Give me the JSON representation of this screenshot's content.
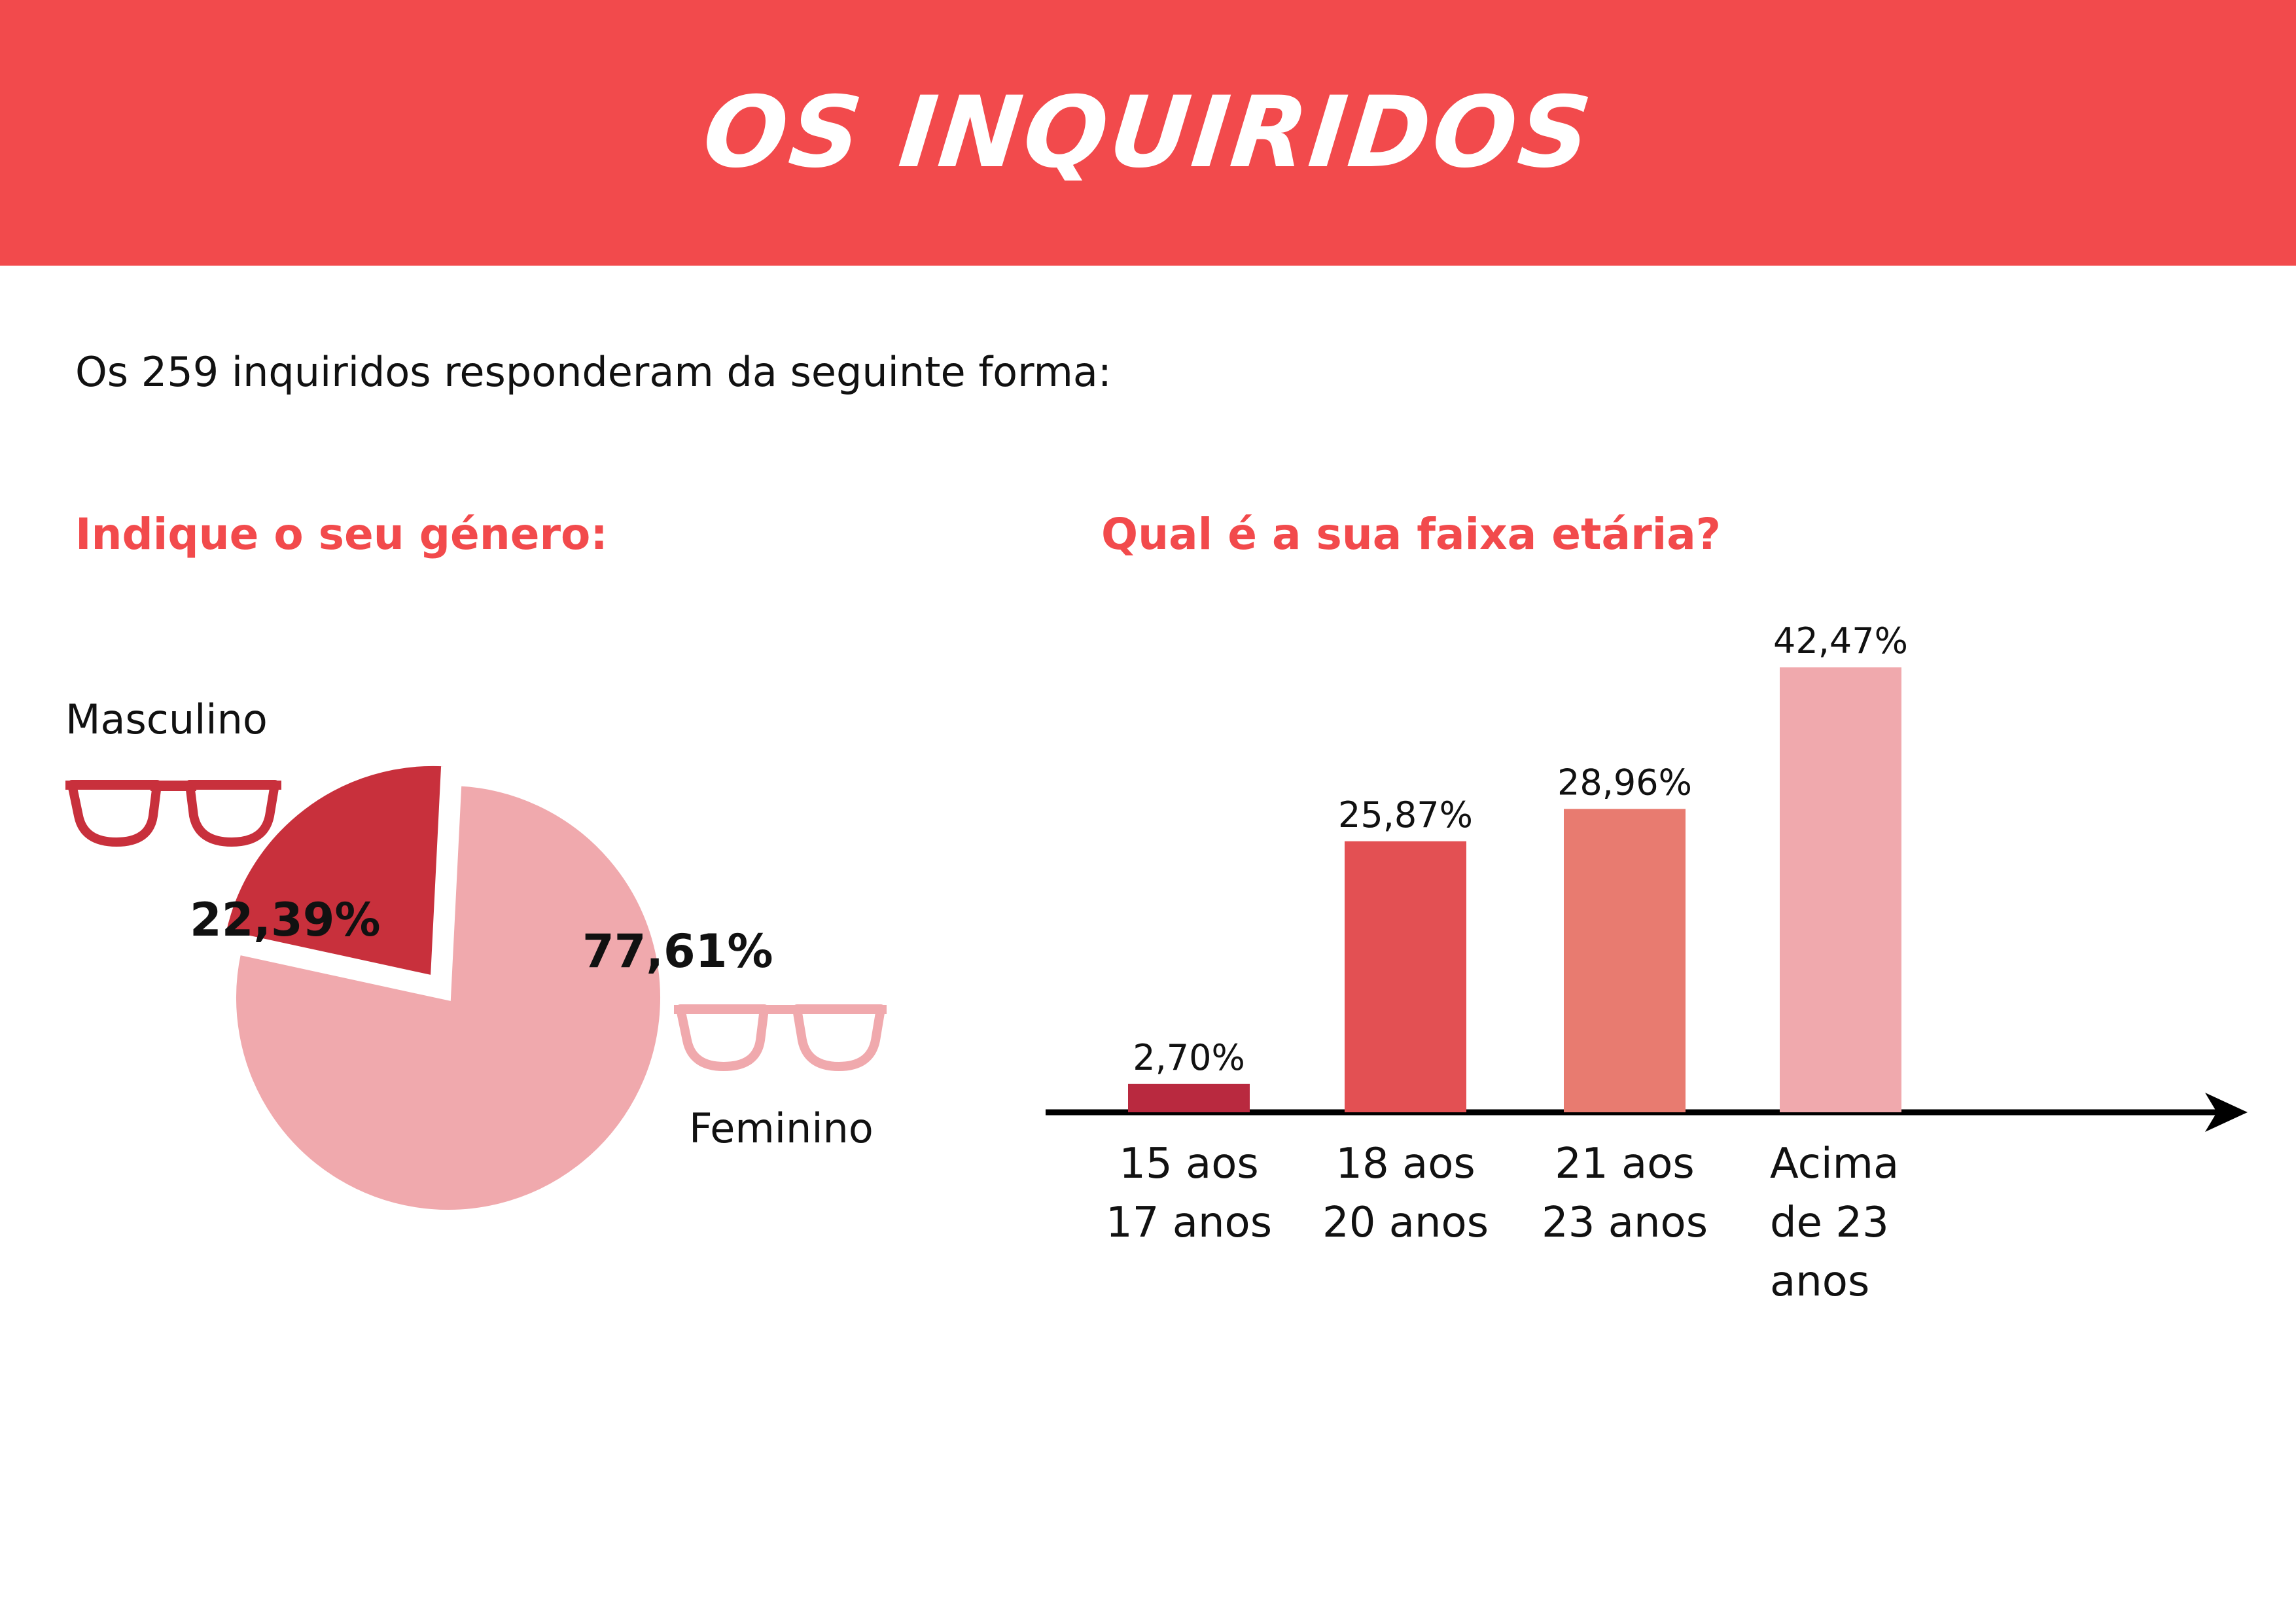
{
  "header": {
    "title": "OS INQUIRIDOS"
  },
  "intro": "Os 259 inquiridos responderam da seguinte forma:",
  "chart_data": [
    {
      "type": "pie",
      "title": "Indique o seu género:",
      "labels": [
        "Masculino",
        "Feminino"
      ],
      "values": [
        22.39,
        77.61
      ],
      "value_labels": [
        "22,39%",
        "77,61%"
      ],
      "colors": [
        "#c8303c",
        "#f0a9ad"
      ],
      "legend": false,
      "grid": false
    },
    {
      "type": "bar",
      "title": "Qual é a sua faixa etária?",
      "categories": [
        [
          "15 aos",
          "17 anos"
        ],
        [
          "18 aos",
          "20 anos"
        ],
        [
          "21 aos",
          "23 anos"
        ],
        [
          "Acima",
          "de 23",
          "anos"
        ]
      ],
      "values": [
        2.7,
        25.87,
        28.96,
        42.47
      ],
      "value_labels": [
        "2,70%",
        "25,87%",
        "28,96%",
        "42,47%"
      ],
      "colors": [
        "#b9293f",
        "#e35053",
        "#e87b70",
        "#f0a9ad"
      ],
      "ylim": [
        0,
        42.47
      ],
      "grid": false,
      "legend": false
    }
  ],
  "icons": {
    "glasses_masc": "glasses-icon",
    "glasses_fem": "glasses-icon"
  }
}
